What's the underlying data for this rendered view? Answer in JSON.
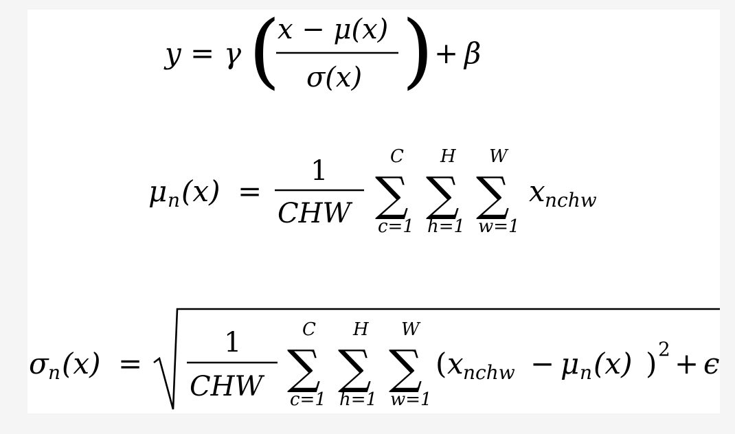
{
  "equations": {
    "eq1": {
      "lhs": "y",
      "eq": "=",
      "gamma": "γ",
      "lparen": "(",
      "num": "x − μ(x)",
      "den": "σ(x)",
      "rparen": ")",
      "plus": "+",
      "beta": "β"
    },
    "eq2": {
      "mu": "μ",
      "sub_n": "n",
      "arg": "(x)",
      "eq": "=",
      "frac_num": "1",
      "frac_den": "CHW",
      "sum1_top": "C",
      "sum1_bot": "c=1",
      "sum2_top": "H",
      "sum2_bot": "h=1",
      "sum3_top": "W",
      "sum3_bot": "w=1",
      "sigma": "∑",
      "term_x": "x",
      "term_sub": "nchw"
    },
    "eq3": {
      "sigma_sym": "σ",
      "sub_n": "n",
      "arg": "(x)",
      "eq": "=",
      "frac_num": "1",
      "frac_den": "CHW",
      "sum1_top": "C",
      "sum1_bot": "c=1",
      "sum2_top": "H",
      "sum2_bot": "h=1",
      "sum3_top": "W",
      "sum3_bot": "w=1",
      "sigma": "∑",
      "lparen": "(",
      "term_x": "x",
      "term_sub": "nchw",
      "minus": "−",
      "mu": "μ",
      "mu_sub": "n",
      "mu_arg": "(x)",
      "rparen": ")",
      "exp": "2",
      "plus": "+",
      "eps": "ϵ"
    }
  }
}
